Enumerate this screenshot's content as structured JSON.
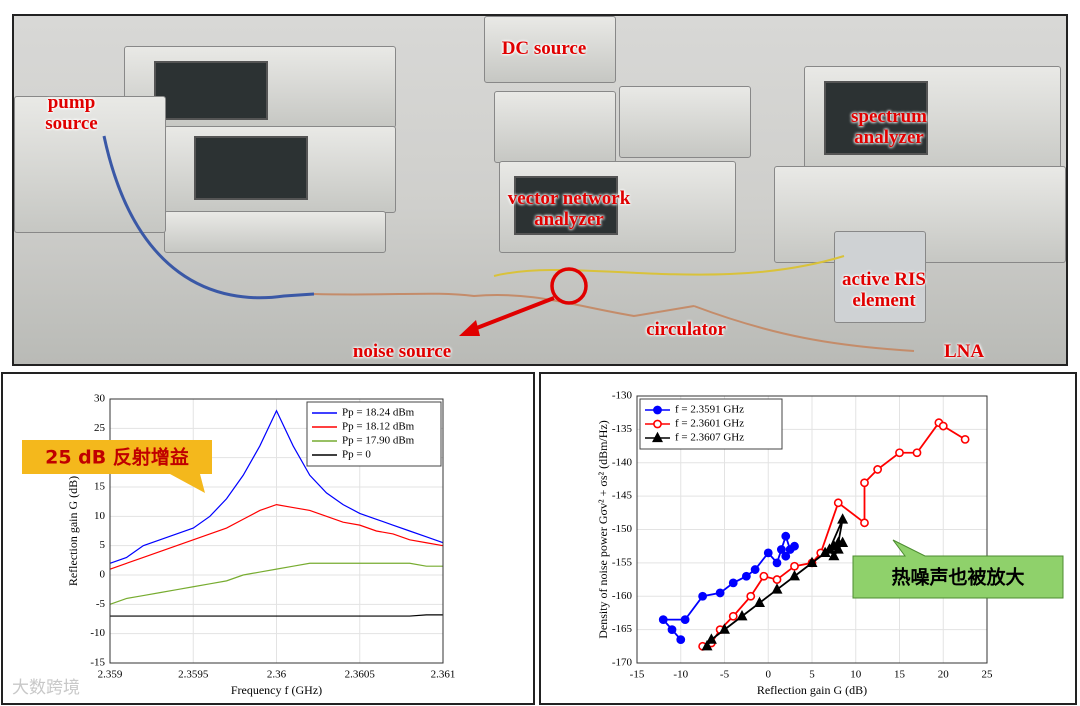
{
  "photo": {
    "labels": [
      "pump source",
      "DC source",
      "vector network analyzer",
      "spectrum analyzer",
      "active RIS element",
      "circulator",
      "noise source",
      "LNA"
    ]
  },
  "watermark": "大数跨境",
  "chart_data": [
    {
      "type": "line",
      "xlabel": "Frequency f (GHz)",
      "ylabel": "Reflection gain G (dB)",
      "annotation": "25 dB 反射增益",
      "x": [
        2.359,
        2.3591,
        2.3592,
        2.3593,
        2.3594,
        2.3595,
        2.3596,
        2.3597,
        2.3598,
        2.3599,
        2.36,
        2.3601,
        2.3602,
        2.3603,
        2.3604,
        2.3605,
        2.3606,
        2.3607,
        2.3608,
        2.3609,
        2.361
      ],
      "series": [
        {
          "name": "Pp = 18.24 dBm",
          "color": "#0000ff",
          "values": [
            2,
            3,
            5,
            6,
            7,
            8,
            10,
            13,
            17,
            22,
            28,
            22,
            17,
            14,
            12,
            10.5,
            9.5,
            8.5,
            7.5,
            6.5,
            5.5
          ]
        },
        {
          "name": "Pp = 18.12 dBm",
          "color": "#ff0000",
          "values": [
            1,
            2,
            3,
            4,
            5,
            6,
            7,
            8,
            9.5,
            11,
            12,
            11.5,
            11,
            10,
            9,
            8.5,
            7.5,
            7,
            6,
            5.5,
            5
          ]
        },
        {
          "name": "Pp = 17.90 dBm",
          "color": "#77ac30",
          "values": [
            -5,
            -4,
            -3.5,
            -3,
            -2.5,
            -2,
            -1.5,
            -1,
            0,
            0.5,
            1,
            1.5,
            2,
            2,
            2,
            2,
            2,
            2,
            2,
            1.5,
            1.5
          ]
        },
        {
          "name": "Pp = 0",
          "color": "#000000",
          "values": [
            -7,
            -7,
            -7,
            -7,
            -7,
            -7,
            -7,
            -7,
            -7,
            -7,
            -7,
            -7,
            -7,
            -7,
            -7,
            -7,
            -7,
            -7,
            -7,
            -6.8,
            -6.8
          ]
        }
      ],
      "xlim": [
        2.359,
        2.361
      ],
      "xticks": [
        2.359,
        2.3595,
        2.36,
        2.3605,
        2.361
      ],
      "ylim": [
        -15,
        30
      ],
      "yticks": [
        -15,
        -10,
        -5,
        0,
        5,
        10,
        15,
        20,
        25,
        30
      ],
      "grid": true,
      "legend": "upper right"
    },
    {
      "type": "line",
      "xlabel": "Reflection gain G (dB)",
      "ylabel": "Density of noise power Gσv² + σs² (dBm/Hz)",
      "annotation": "热噪声也被放大",
      "series": [
        {
          "name": "f = 2.3591 GHz",
          "color": "#0000ff",
          "marker": "circle",
          "marker_filled": true,
          "x": [
            -10,
            -11,
            -12,
            -9.5,
            -7.5,
            -5.5,
            -4,
            -2.5,
            -1.5,
            0,
            1,
            1.5,
            2,
            2.5,
            2,
            3
          ],
          "values": [
            -166.5,
            -165,
            -163.5,
            -163.5,
            -160,
            -159.5,
            -158,
            -157,
            -156,
            -153.5,
            -155,
            -153,
            -151,
            -153,
            -154,
            -152.5
          ]
        },
        {
          "name": "f = 2.3601 GHz",
          "color": "#ff0000",
          "marker": "circle",
          "marker_filled": false,
          "x": [
            -7.5,
            -6.5,
            -5.5,
            -4,
            -2,
            -0.5,
            1,
            3,
            5,
            6,
            8,
            11,
            11,
            12.5,
            15,
            17,
            19.5,
            20,
            22.5
          ],
          "values": [
            -167.5,
            -167,
            -165,
            -163,
            -160,
            -157,
            -157.5,
            -155.5,
            -155,
            -153.5,
            -146,
            -149,
            -143,
            -141,
            -138.5,
            -138.5,
            -134,
            -134.5,
            -136.5
          ]
        },
        {
          "name": "f = 2.3607 GHz",
          "color": "#000000",
          "marker": "triangle",
          "marker_filled": true,
          "x": [
            -7,
            -6.5,
            -5,
            -3,
            -1,
            1,
            3,
            5,
            6.5,
            7.5,
            8,
            8.5,
            7,
            7.5,
            8,
            8.5
          ],
          "values": [
            -167.5,
            -166.5,
            -165,
            -163,
            -161,
            -159,
            -157,
            -155,
            -153.5,
            -152.5,
            -152,
            -148.5,
            -153,
            -154,
            -153,
            -152
          ]
        }
      ],
      "xlim": [
        -15,
        25
      ],
      "xticks": [
        -15,
        -10,
        -5,
        0,
        5,
        10,
        15,
        20,
        25
      ],
      "ylim": [
        -170,
        -130
      ],
      "yticks": [
        -170,
        -165,
        -160,
        -155,
        -150,
        -145,
        -140,
        -135,
        -130
      ],
      "grid": true,
      "legend": "upper left"
    }
  ]
}
